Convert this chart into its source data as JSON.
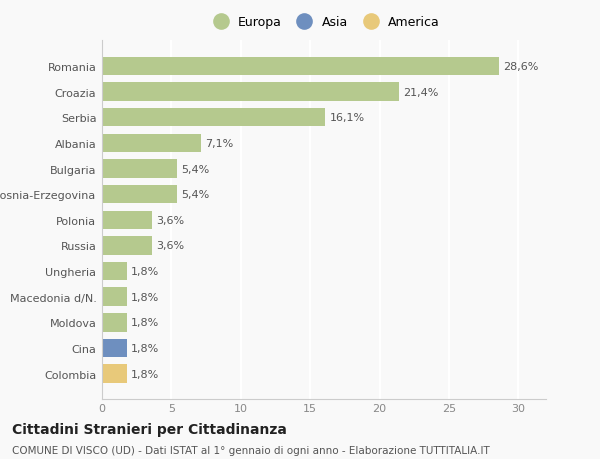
{
  "categories": [
    "Colombia",
    "Cina",
    "Moldova",
    "Macedonia d/N.",
    "Ungheria",
    "Russia",
    "Polonia",
    "Bosnia-Erzegovina",
    "Bulgaria",
    "Albania",
    "Serbia",
    "Croazia",
    "Romania"
  ],
  "values": [
    1.8,
    1.8,
    1.8,
    1.8,
    1.8,
    3.6,
    3.6,
    5.4,
    5.4,
    7.1,
    16.1,
    21.4,
    28.6
  ],
  "labels": [
    "1,8%",
    "1,8%",
    "1,8%",
    "1,8%",
    "1,8%",
    "3,6%",
    "3,6%",
    "5,4%",
    "5,4%",
    "7,1%",
    "16,1%",
    "21,4%",
    "28,6%"
  ],
  "bar_colors": [
    "#e8c97a",
    "#6e8fbf",
    "#b5c98e",
    "#b5c98e",
    "#b5c98e",
    "#b5c98e",
    "#b5c98e",
    "#b5c98e",
    "#b5c98e",
    "#b5c98e",
    "#b5c98e",
    "#b5c98e",
    "#b5c98e"
  ],
  "legend_labels": [
    "Europa",
    "Asia",
    "America"
  ],
  "legend_colors": [
    "#b5c98e",
    "#6e8fbf",
    "#e8c97a"
  ],
  "xlim": [
    0,
    32
  ],
  "xticks": [
    0,
    5,
    10,
    15,
    20,
    25,
    30
  ],
  "title": "Cittadini Stranieri per Cittadinanza",
  "subtitle": "COMUNE DI VISCO (UD) - Dati ISTAT al 1° gennaio di ogni anno - Elaborazione TUTTITALIA.IT",
  "background_color": "#f9f9f9",
  "grid_color": "#ffffff",
  "bar_height": 0.72,
  "title_fontsize": 10,
  "subtitle_fontsize": 7.5,
  "label_fontsize": 8,
  "tick_fontsize": 8
}
